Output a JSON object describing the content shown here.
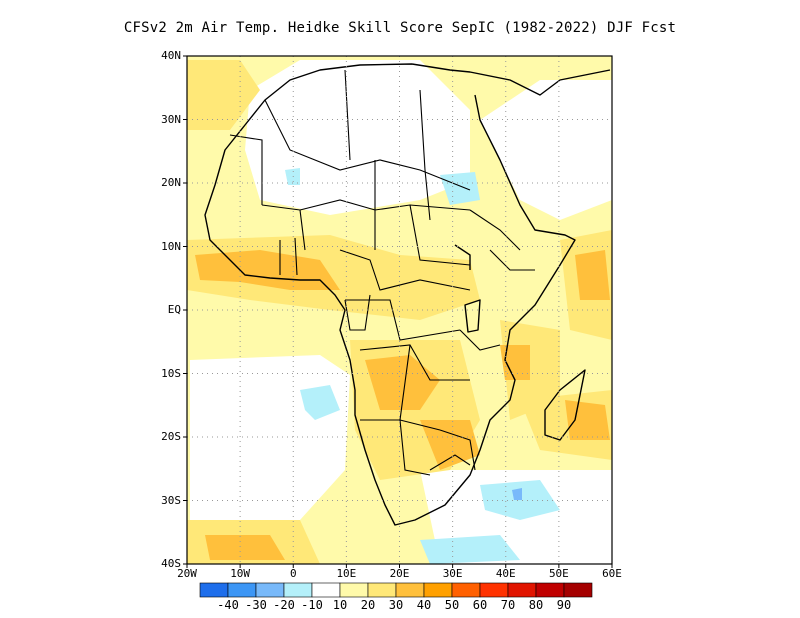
{
  "title": "CFSv2  2m Air Temp. Heidke Skill Score SepIC (1982-2022) DJF Fcst",
  "map": {
    "lat_labels": [
      "40N",
      "30N",
      "20N",
      "10N",
      "EQ",
      "10S",
      "20S",
      "30S",
      "40S"
    ],
    "lon_labels": [
      "20W",
      "10W",
      "0",
      "10E",
      "20E",
      "30E",
      "40E",
      "50E",
      "60E"
    ],
    "extent": {
      "lon_min": -20,
      "lon_max": 60,
      "lat_min": -40,
      "lat_max": 40
    }
  },
  "colorbar": {
    "colors": [
      "#1e6eeb",
      "#3c96f5",
      "#78b9fa",
      "#b4f0fa",
      "#ffffff",
      "#fffaaa",
      "#ffe878",
      "#ffc03c",
      "#ffa000",
      "#ff6000",
      "#ff3200",
      "#e11400",
      "#c00000",
      "#a50000"
    ],
    "labels": [
      "-40",
      "-30",
      "-20",
      "-10",
      "10",
      "20",
      "30",
      "40",
      "50",
      "60",
      "70",
      "80",
      "90"
    ]
  }
}
